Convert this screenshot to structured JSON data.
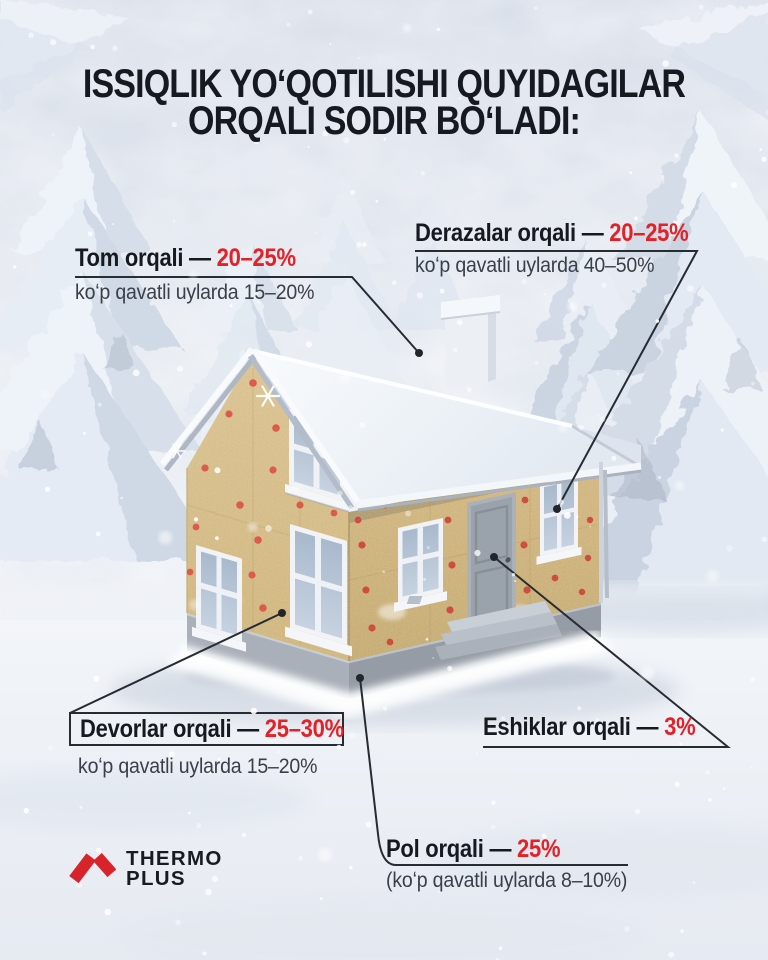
{
  "poster": {
    "title_line1": "ISSIQLIK YOʻQOTILISHI QUYIDAGILAR",
    "title_line2": "ORQALI SODIR BOʻLADI:"
  },
  "callouts": {
    "roof": {
      "label": "Tom orqali — ",
      "value": "20–25%",
      "sub": "koʻp qavatli uylarda 15–20%"
    },
    "windows": {
      "label": "Derazalar orqali — ",
      "value": "20–25%",
      "sub": "koʻp qavatli uylarda 40–50%"
    },
    "walls": {
      "label": "Devorlar orqali — ",
      "value": "25–30%",
      "sub": "koʻp qavatli uylarda 15–20%"
    },
    "doors": {
      "label": "Eshiklar orqali — ",
      "value": "3%"
    },
    "floor": {
      "label": "Pol orqali — ",
      "value": "25%",
      "sub": "(koʻp qavatli uylarda 8–10%)"
    }
  },
  "logo": {
    "name_line1": "THERMO",
    "name_line2": "PLUS"
  },
  "colors": {
    "accent_red": "#e32127",
    "text_dark": "#16191f",
    "text_gray": "#3a4049"
  }
}
